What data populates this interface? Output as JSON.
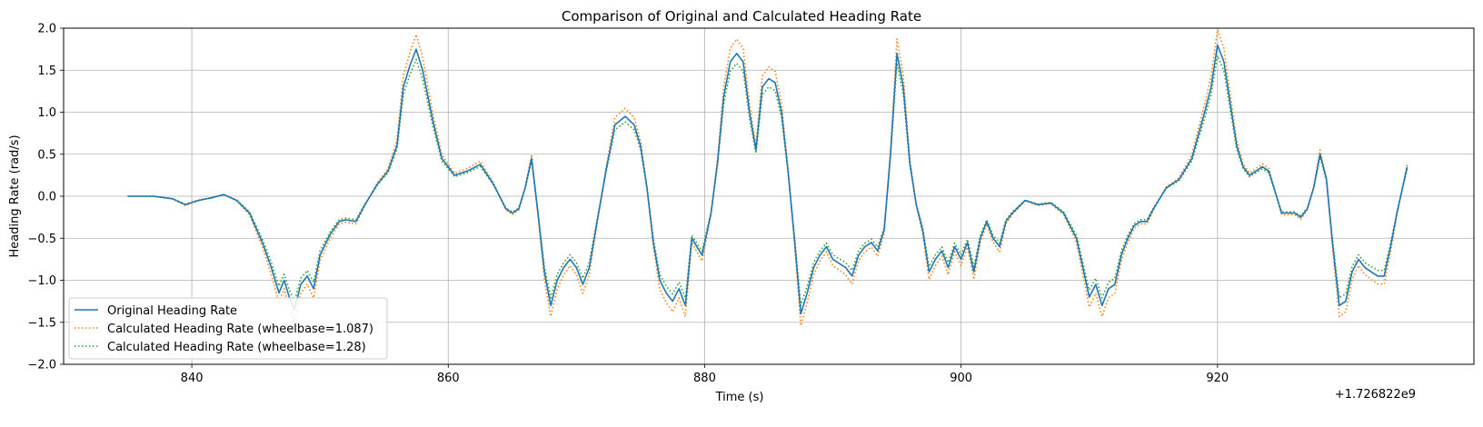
{
  "chart_data": {
    "type": "line",
    "title": "Comparison of Original and Calculated Heading Rate",
    "xlabel": "Time (s)",
    "ylabel": "Heading Rate (rad/s)",
    "x_offset_label": "+1.726822e9",
    "xlim": [
      830,
      940
    ],
    "ylim": [
      -2.0,
      2.0
    ],
    "grid": true,
    "legend_position": "lower-left",
    "x_ticks": [
      840,
      860,
      880,
      900,
      920
    ],
    "y_ticks": [
      -2.0,
      -1.5,
      -1.0,
      -0.5,
      0.0,
      0.5,
      1.0,
      1.5,
      2.0
    ],
    "x_tick_labels": [
      "840",
      "860",
      "880",
      "900",
      "920"
    ],
    "y_tick_labels": [
      "−2.0",
      "−1.5",
      "−1.0",
      "−0.5",
      "0.0",
      "0.5",
      "1.0",
      "1.5",
      "2.0"
    ],
    "series": [
      {
        "name": "Original Heading Rate",
        "color": "#1f77b4",
        "style": "solid",
        "x": [
          835,
          837,
          838.5,
          839.5,
          840.5,
          841.5,
          842.5,
          843.5,
          844.5,
          845.5,
          846.2,
          846.8,
          847.2,
          847.6,
          848.0,
          848.5,
          849.0,
          849.5,
          850.0,
          850.8,
          851.5,
          852.0,
          852.8,
          853.5,
          854.5,
          855.3,
          856.0,
          856.5,
          857.0,
          857.5,
          858.0,
          858.8,
          859.5,
          860.5,
          861.5,
          862.5,
          863.5,
          864.5,
          865.0,
          865.5,
          866.0,
          866.5,
          867.0,
          867.5,
          868.0,
          868.5,
          869.0,
          869.5,
          870.0,
          870.5,
          871.0,
          871.5,
          872.3,
          873.0,
          873.8,
          874.5,
          875.0,
          875.5,
          876.0,
          876.5,
          877.0,
          877.5,
          878.0,
          878.5,
          879.0,
          879.8,
          880.5,
          881.0,
          881.5,
          882.0,
          882.5,
          883.0,
          883.5,
          884.0,
          884.5,
          885.0,
          885.5,
          886.0,
          886.5,
          887.0,
          887.5,
          888.0,
          888.5,
          889.0,
          889.5,
          890.0,
          890.5,
          891.0,
          891.5,
          892.0,
          892.5,
          893.0,
          893.5,
          894.0,
          894.5,
          895.0,
          895.5,
          896.0,
          896.5,
          897.0,
          897.5,
          898.0,
          898.5,
          899.0,
          899.5,
          900.0,
          900.5,
          901.0,
          901.5,
          902.0,
          902.5,
          903.0,
          903.5,
          904.0,
          905.0,
          906.0,
          907.0,
          908.0,
          909.0,
          909.5,
          910.0,
          910.5,
          911.0,
          911.5,
          912.0,
          912.5,
          913.0,
          913.5,
          914.0,
          914.5,
          915.0,
          916.0,
          917.0,
          918.0,
          919.0,
          919.5,
          920.0,
          920.5,
          921.0,
          921.5,
          922.0,
          922.5,
          923.0,
          923.5,
          924.0,
          925.0,
          926.0,
          926.5,
          927.0,
          927.5,
          928.0,
          928.5,
          929.0,
          929.5,
          930.0,
          930.5,
          931.0,
          931.5,
          932.0,
          932.5,
          933.0,
          933.5,
          934.0,
          934.8
        ],
        "y": [
          0.0,
          0.0,
          -0.03,
          -0.1,
          -0.05,
          -0.02,
          0.02,
          -0.05,
          -0.2,
          -0.55,
          -0.85,
          -1.15,
          -1.0,
          -1.2,
          -1.35,
          -1.05,
          -0.95,
          -1.1,
          -0.7,
          -0.45,
          -0.3,
          -0.28,
          -0.3,
          -0.1,
          0.15,
          0.3,
          0.6,
          1.3,
          1.55,
          1.75,
          1.5,
          0.9,
          0.45,
          0.25,
          0.3,
          0.38,
          0.15,
          -0.15,
          -0.2,
          -0.15,
          0.1,
          0.45,
          -0.2,
          -0.9,
          -1.3,
          -1.0,
          -0.85,
          -0.75,
          -0.85,
          -1.05,
          -0.85,
          -0.4,
          0.3,
          0.85,
          0.95,
          0.85,
          0.6,
          0.1,
          -0.55,
          -1.0,
          -1.15,
          -1.25,
          -1.1,
          -1.3,
          -0.5,
          -0.7,
          -0.2,
          0.4,
          1.2,
          1.6,
          1.7,
          1.6,
          1.0,
          0.55,
          1.3,
          1.4,
          1.35,
          1.0,
          0.3,
          -0.5,
          -1.4,
          -1.15,
          -0.85,
          -0.7,
          -0.6,
          -0.75,
          -0.8,
          -0.85,
          -0.95,
          -0.7,
          -0.6,
          -0.55,
          -0.65,
          -0.4,
          0.5,
          1.7,
          1.3,
          0.4,
          -0.1,
          -0.4,
          -0.9,
          -0.75,
          -0.65,
          -0.85,
          -0.6,
          -0.75,
          -0.55,
          -0.9,
          -0.5,
          -0.3,
          -0.5,
          -0.6,
          -0.3,
          -0.2,
          -0.05,
          -0.1,
          -0.08,
          -0.2,
          -0.5,
          -0.85,
          -1.2,
          -1.05,
          -1.3,
          -1.1,
          -1.05,
          -0.7,
          -0.5,
          -0.35,
          -0.3,
          -0.3,
          -0.15,
          0.1,
          0.2,
          0.45,
          1.0,
          1.3,
          1.8,
          1.6,
          1.1,
          0.6,
          0.35,
          0.25,
          0.3,
          0.35,
          0.3,
          -0.2,
          -0.2,
          -0.25,
          -0.15,
          0.1,
          0.5,
          0.2,
          -0.6,
          -1.3,
          -1.25,
          -0.9,
          -0.75,
          -0.85,
          -0.9,
          -0.95,
          -0.95,
          -0.6,
          -0.2,
          0.35
        ]
      },
      {
        "name": "Calculated Heading Rate (wheelbase=1.087)",
        "color": "#ff7f0e",
        "style": "dotted",
        "scale": 1.1
      },
      {
        "name": "Calculated Heading Rate (wheelbase=1.28)",
        "color": "#2ca02c",
        "style": "dotted",
        "scale": 0.93
      }
    ]
  }
}
